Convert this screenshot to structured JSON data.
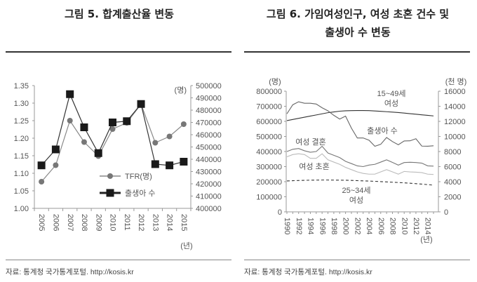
{
  "figure5": {
    "title": "그림 5. 합계출산율 변동",
    "source": "자료: 통계청 국가통계포털. http://kosis.kr"
  },
  "figure6": {
    "title_line1": "그림 6. 가임여성인구, 여성 초혼 건수 및",
    "title_line2": "출생아 수 변동",
    "source": "자료: 통계청 국가통계포털. http://kosis.kr"
  },
  "chart_data": [
    {
      "type": "line",
      "title": "그림 5. 합계출산율 변동",
      "x": [
        "2005",
        "2006",
        "2007",
        "2008",
        "2009",
        "2010",
        "2011",
        "2012",
        "2013",
        "2014",
        "2015"
      ],
      "xunit": "(년)",
      "left_axis": {
        "ylim": [
          1.0,
          1.35
        ],
        "ticks": [
          "1.00",
          "1.05",
          "1.10",
          "1.15",
          "1.20",
          "1.25",
          "1.30",
          "1.35"
        ]
      },
      "right_axis": {
        "unit": "(명)",
        "ylim": [
          400000,
          500000
        ],
        "ticks": [
          "400000",
          "410000",
          "420000",
          "430000",
          "440000",
          "450000",
          "460000",
          "470000",
          "480000",
          "490000",
          "500000"
        ]
      },
      "series": [
        {
          "name": "TFR(명)",
          "axis": "left",
          "marker": "circle",
          "color": "#777777",
          "values": [
            1.076,
            1.123,
            1.25,
            1.189,
            1.149,
            1.226,
            1.244,
            1.297,
            1.187,
            1.205,
            1.24
          ]
        },
        {
          "name": "출생아 수",
          "axis": "right",
          "marker": "square",
          "color": "#222222",
          "values": [
            435000,
            448000,
            493000,
            466000,
            445000,
            470000,
            471000,
            485000,
            436000,
            435000,
            438000
          ]
        }
      ],
      "legend": {
        "position": "lower-right"
      },
      "grid": false
    },
    {
      "type": "line",
      "title": "그림 6. 가임여성인구, 여성 초혼 건수 및 출생아 수 변동",
      "x": [
        "1990",
        "1991",
        "1992",
        "1993",
        "1994",
        "1995",
        "1996",
        "1997",
        "1998",
        "1999",
        "2000",
        "2001",
        "2002",
        "2003",
        "2004",
        "2005",
        "2006",
        "2007",
        "2008",
        "2009",
        "2010",
        "2011",
        "2012",
        "2013",
        "2014",
        "2015"
      ],
      "xticks": [
        "1990",
        "1992",
        "1994",
        "1996",
        "1998",
        "2000",
        "2002",
        "2004",
        "2006",
        "2008",
        "2010",
        "2012",
        "2014"
      ],
      "xunit": "(년)",
      "left_axis": {
        "unit": "(명)",
        "ylim": [
          0,
          800000
        ],
        "ticks": [
          "0",
          "100000",
          "200000",
          "300000",
          "400000",
          "500000",
          "600000",
          "700000",
          "800000"
        ]
      },
      "right_axis": {
        "unit": "(천 명)",
        "ylim": [
          0,
          16000
        ],
        "ticks": [
          "0",
          "2000",
          "4000",
          "6000",
          "8000",
          "10000",
          "12000",
          "14000",
          "16000"
        ]
      },
      "series": [
        {
          "name": "15~49세 여성",
          "axis": "right",
          "style": "solid",
          "color": "#333333",
          "values": [
            12100,
            12250,
            12400,
            12550,
            12700,
            12850,
            13000,
            13150,
            13250,
            13350,
            13400,
            13420,
            13440,
            13440,
            13420,
            13380,
            13330,
            13280,
            13230,
            13170,
            13100,
            13020,
            12950,
            12870,
            12800,
            12720
          ]
        },
        {
          "name": "출생아 수",
          "axis": "left",
          "style": "solid",
          "color": "#666666",
          "values": [
            650000,
            710000,
            730000,
            720000,
            720000,
            715000,
            690000,
            670000,
            640000,
            615000,
            635000,
            555000,
            490000,
            490000,
            475000,
            435000,
            448000,
            493000,
            466000,
            445000,
            470000,
            471000,
            485000,
            436000,
            435000,
            438000
          ]
        },
        {
          "name": "여성 결혼",
          "axis": "left",
          "style": "solid",
          "color": "#777777",
          "values": [
            400000,
            415000,
            420000,
            405000,
            395000,
            400000,
            435000,
            390000,
            375000,
            360000,
            335000,
            320000,
            305000,
            300000,
            310000,
            315000,
            330000,
            345000,
            328000,
            310000,
            327000,
            329000,
            327000,
            323000,
            305000,
            303000
          ]
        },
        {
          "name": "여성 초혼",
          "axis": "left",
          "style": "solid",
          "color": "#bbbbbb",
          "values": [
            365000,
            380000,
            385000,
            380000,
            355000,
            355000,
            385000,
            345000,
            330000,
            315000,
            295000,
            280000,
            265000,
            255000,
            250000,
            250000,
            265000,
            280000,
            265000,
            250000,
            268000,
            265000,
            263000,
            260000,
            250000,
            248000
          ]
        },
        {
          "name": "25~34세 여성",
          "axis": "right",
          "style": "dashed",
          "color": "#333333",
          "values": [
            4100,
            4130,
            4160,
            4180,
            4200,
            4210,
            4220,
            4220,
            4210,
            4200,
            4190,
            4170,
            4140,
            4110,
            4080,
            4050,
            4010,
            3970,
            3930,
            3890,
            3850,
            3800,
            3740,
            3680,
            3610,
            3540
          ]
        }
      ],
      "annotations": [
        "15~49세",
        "여성",
        "출생아 수",
        "여성 결혼",
        "여성 초혼",
        "25~34세",
        "여성"
      ],
      "grid": false
    }
  ]
}
